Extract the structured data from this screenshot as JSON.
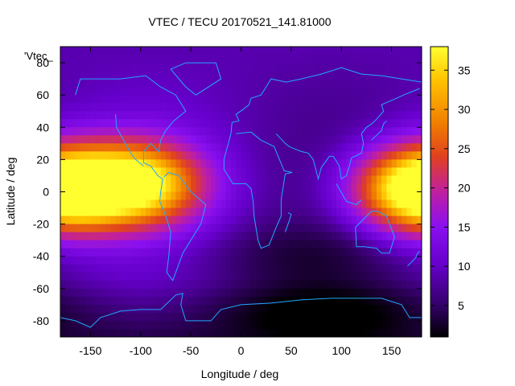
{
  "chart_data": {
    "type": "heatmap",
    "title": "VTEC / TECU 20170521_141.81000",
    "xlabel": "Longitude / deg",
    "ylabel": "Latitude / deg",
    "key_label": "'Vtec_",
    "xlim": [
      -180,
      180
    ],
    "ylim": [
      -90,
      90
    ],
    "x_ticks": [
      -150,
      -100,
      -50,
      0,
      50,
      100,
      150
    ],
    "y_ticks": [
      -80,
      -60,
      -40,
      -20,
      0,
      20,
      40,
      60,
      80
    ],
    "colorbar": {
      "range": [
        1,
        38
      ],
      "ticks": [
        5,
        10,
        15,
        20,
        25,
        30,
        35
      ],
      "palette": [
        "#000000",
        "#300060",
        "#6600cc",
        "#8a10f0",
        "#c020a0",
        "#e04020",
        "#f08000",
        "#ffc000",
        "#ffff30"
      ]
    },
    "background_tec": 9,
    "features": [
      {
        "name": "equatorial anomaly west",
        "lon": -180,
        "lat": 0,
        "peak_tec": 33
      },
      {
        "name": "equatorial anomaly america",
        "lon": -100,
        "lat": 5,
        "peak_tec": 36
      },
      {
        "name": "equatorial anomaly far east",
        "lon": 180,
        "lat": 5,
        "peak_tec": 22
      },
      {
        "name": "night-side minimum south",
        "lon": 80,
        "lat": -75,
        "peak_tec": 2
      },
      {
        "name": "night-side minimum mid",
        "lon": 60,
        "lat": -40,
        "peak_tec": 5
      }
    ]
  }
}
